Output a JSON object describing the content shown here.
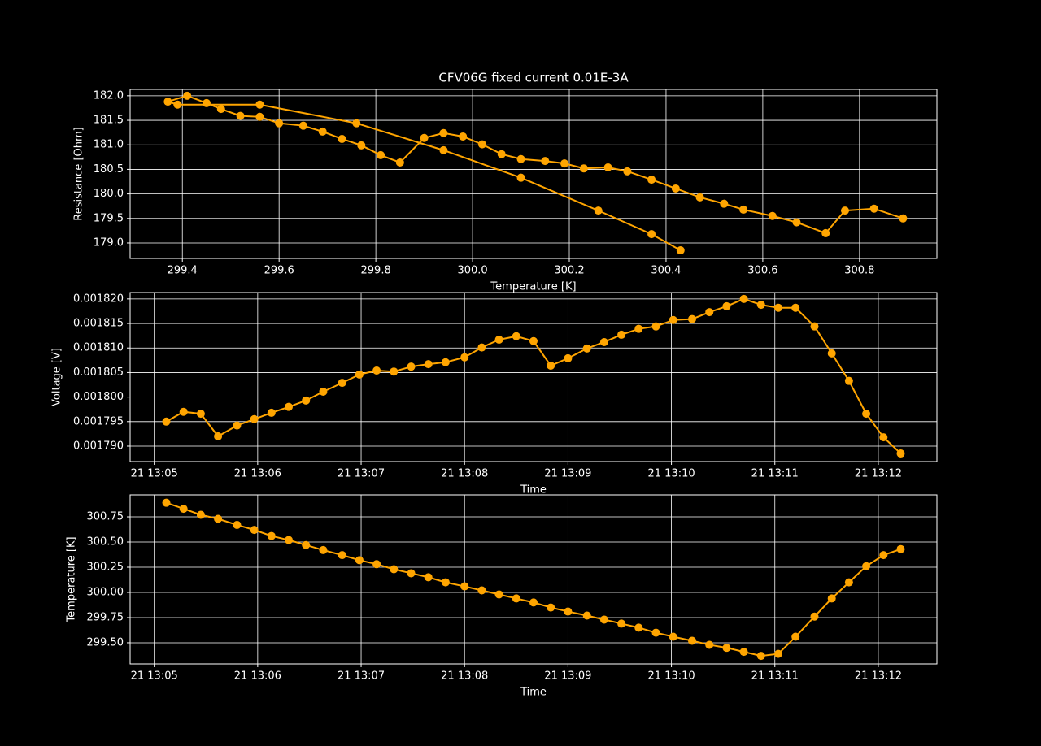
{
  "chart_data": [
    {
      "type": "line",
      "title": "CFV06G fixed current 0.01E-3A",
      "xlabel": "Temperature [K]",
      "ylabel": "Resistance [Ohm]",
      "color": "#ffa500",
      "grid": true,
      "x": [
        300.89,
        300.83,
        300.77,
        300.73,
        300.67,
        300.62,
        300.56,
        300.52,
        300.47,
        300.42,
        300.37,
        300.32,
        300.28,
        300.23,
        300.19,
        300.15,
        300.1,
        300.06,
        300.02,
        299.98,
        299.94,
        299.9,
        299.85,
        299.81,
        299.77,
        299.73,
        299.69,
        299.65,
        299.6,
        299.56,
        299.52,
        299.48,
        299.45,
        299.41,
        299.37,
        299.39,
        299.56,
        299.76,
        299.94,
        300.1,
        300.26,
        300.37,
        300.43
      ],
      "values": [
        179.5,
        179.7,
        179.66,
        179.2,
        179.42,
        179.55,
        179.68,
        179.8,
        179.93,
        180.11,
        180.29,
        180.46,
        180.54,
        180.52,
        180.62,
        180.67,
        180.71,
        180.81,
        181.01,
        181.17,
        181.24,
        181.14,
        180.64,
        180.79,
        180.99,
        181.12,
        181.27,
        181.39,
        181.44,
        181.57,
        181.59,
        181.73,
        181.85,
        182.0,
        181.88,
        181.82,
        181.82,
        181.44,
        180.89,
        180.33,
        179.66,
        179.18,
        178.85
      ],
      "xlim": [
        299.292,
        300.96
      ],
      "xticks": [
        299.4,
        299.6,
        299.8,
        {
          "value": 300.0,
          "label": "300.0"
        },
        300.2,
        300.4,
        300.6,
        300.8
      ],
      "ylim": [
        178.685,
        182.13
      ],
      "yticks": [
        {
          "value": 179.0,
          "label": "179.0"
        },
        179.5,
        {
          "value": 180.0,
          "label": "180.0"
        },
        180.5,
        {
          "value": 181.0,
          "label": "181.0"
        },
        181.5,
        {
          "value": 182.0,
          "label": "182.0"
        }
      ]
    },
    {
      "type": "line",
      "xlabel": "Time",
      "ylabel": "Voltage [V]",
      "color": "#ffa500",
      "grid": true,
      "x": [
        "21 13:05:07",
        "21 13:05:17",
        "21 13:05:27",
        "21 13:05:37",
        "21 13:05:48",
        "21 13:05:58",
        "21 13:06:08",
        "21 13:06:18",
        "21 13:06:28",
        "21 13:06:38",
        "21 13:06:49",
        "21 13:06:59",
        "21 13:07:09",
        "21 13:07:19",
        "21 13:07:29",
        "21 13:07:39",
        "21 13:07:49",
        "21 13:08:00",
        "21 13:08:10",
        "21 13:08:20",
        "21 13:08:30",
        "21 13:08:40",
        "21 13:08:50",
        "21 13:09:00",
        "21 13:09:11",
        "21 13:09:21",
        "21 13:09:31",
        "21 13:09:41",
        "21 13:09:51",
        "21 13:10:01",
        "21 13:10:12",
        "21 13:10:22",
        "21 13:10:32",
        "21 13:10:42",
        "21 13:10:52",
        "21 13:11:02",
        "21 13:11:12",
        "21 13:11:23",
        "21 13:11:33",
        "21 13:11:43",
        "21 13:11:53",
        "21 13:12:03",
        "21 13:12:13"
      ],
      "values": [
        0.001795,
        0.001797,
        0.0017966,
        0.001792,
        0.0017942,
        0.0017955,
        0.0017968,
        0.001798,
        0.0017993,
        0.0018011,
        0.0018029,
        0.0018046,
        0.0018054,
        0.0018052,
        0.0018062,
        0.0018067,
        0.0018071,
        0.0018081,
        0.0018101,
        0.0018117,
        0.0018124,
        0.0018114,
        0.0018064,
        0.0018079,
        0.0018099,
        0.0018112,
        0.0018127,
        0.0018139,
        0.0018144,
        0.0018157,
        0.0018159,
        0.0018173,
        0.0018185,
        0.00182,
        0.0018188,
        0.0018182,
        0.0018182,
        0.0018144,
        0.0018089,
        0.0018033,
        0.0017966,
        0.0017918,
        0.0017885
      ],
      "xlim": [
        "21 13:04:46",
        "21 13:12:34"
      ],
      "xticks": [
        "21 13:05",
        "21 13:06",
        "21 13:07",
        "21 13:08",
        "21 13:09",
        "21 13:10",
        "21 13:11",
        "21 13:12"
      ],
      "ylim": [
        0.00178685,
        0.0018213
      ],
      "yticks": [
        {
          "value": 0.00179,
          "label": "0.001790"
        },
        0.001795,
        {
          "value": 0.0018,
          "label": "0.001800"
        },
        0.001805,
        {
          "value": 0.00181,
          "label": "0.001810"
        },
        0.001815,
        {
          "value": 0.00182,
          "label": "0.001820"
        }
      ]
    },
    {
      "type": "line",
      "xlabel": "Time",
      "ylabel": "Temperature [K]",
      "color": "#ffa500",
      "grid": true,
      "x": [
        "21 13:05:07",
        "21 13:05:17",
        "21 13:05:27",
        "21 13:05:37",
        "21 13:05:48",
        "21 13:05:58",
        "21 13:06:08",
        "21 13:06:18",
        "21 13:06:28",
        "21 13:06:38",
        "21 13:06:49",
        "21 13:06:59",
        "21 13:07:09",
        "21 13:07:19",
        "21 13:07:29",
        "21 13:07:39",
        "21 13:07:49",
        "21 13:08:00",
        "21 13:08:10",
        "21 13:08:20",
        "21 13:08:30",
        "21 13:08:40",
        "21 13:08:50",
        "21 13:09:00",
        "21 13:09:11",
        "21 13:09:21",
        "21 13:09:31",
        "21 13:09:41",
        "21 13:09:51",
        "21 13:10:01",
        "21 13:10:12",
        "21 13:10:22",
        "21 13:10:32",
        "21 13:10:42",
        "21 13:10:52",
        "21 13:11:02",
        "21 13:11:12",
        "21 13:11:23",
        "21 13:11:33",
        "21 13:11:43",
        "21 13:11:53",
        "21 13:12:03",
        "21 13:12:13"
      ],
      "values": [
        300.89,
        300.83,
        300.77,
        300.73,
        300.67,
        300.62,
        300.56,
        300.52,
        300.47,
        300.42,
        300.37,
        300.32,
        300.28,
        300.23,
        300.19,
        300.15,
        300.1,
        300.06,
        300.02,
        299.98,
        299.94,
        299.9,
        299.85,
        299.81,
        299.77,
        299.73,
        299.69,
        299.65,
        299.6,
        299.56,
        299.52,
        299.48,
        299.45,
        299.41,
        299.37,
        299.39,
        299.56,
        299.76,
        299.94,
        300.1,
        300.26,
        300.37,
        300.43
      ],
      "xlim": [
        "21 13:04:46",
        "21 13:12:34"
      ],
      "xticks": [
        "21 13:05",
        "21 13:06",
        "21 13:07",
        "21 13:08",
        "21 13:09",
        "21 13:10",
        "21 13:11",
        "21 13:12"
      ],
      "ylim": [
        299.29,
        300.968
      ],
      "yticks": [
        {
          "value": 299.5,
          "label": "299.50"
        },
        299.75,
        {
          "value": 300.0,
          "label": "300.00"
        },
        300.25,
        {
          "value": 300.5,
          "label": "300.50"
        },
        300.75
      ]
    }
  ]
}
